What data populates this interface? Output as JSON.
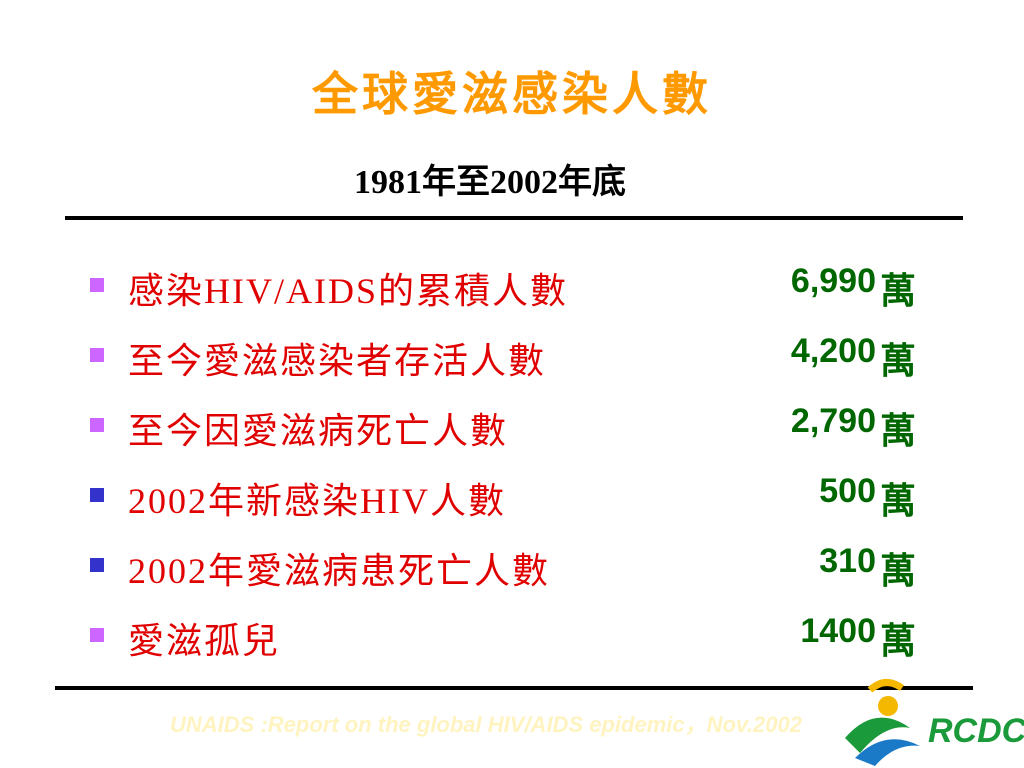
{
  "title": "全球愛滋感染人數",
  "subtitle": "1981年至2002年底",
  "items": [
    {
      "label": "感染HIV/AIDS的累積人數",
      "value": "6,990",
      "unit": "萬"
    },
    {
      "label": "至今愛滋感染者存活人數",
      "value": "4,200",
      "unit": "萬"
    },
    {
      "label": "至今因愛滋病死亡人數",
      "value": "2,790",
      "unit": "萬"
    },
    {
      "label": "2002年新感染HIV人數",
      "value": "500",
      "unit": "萬"
    },
    {
      "label": "2002年愛滋病患死亡人數",
      "value": "310",
      "unit": "萬"
    },
    {
      "label": "愛滋孤兒",
      "value": "1400",
      "unit": "萬"
    }
  ],
  "footer": "UNAIDS :Report on the global HIV/AIDS epidemic，Nov.2002",
  "logo": "RCDC"
}
